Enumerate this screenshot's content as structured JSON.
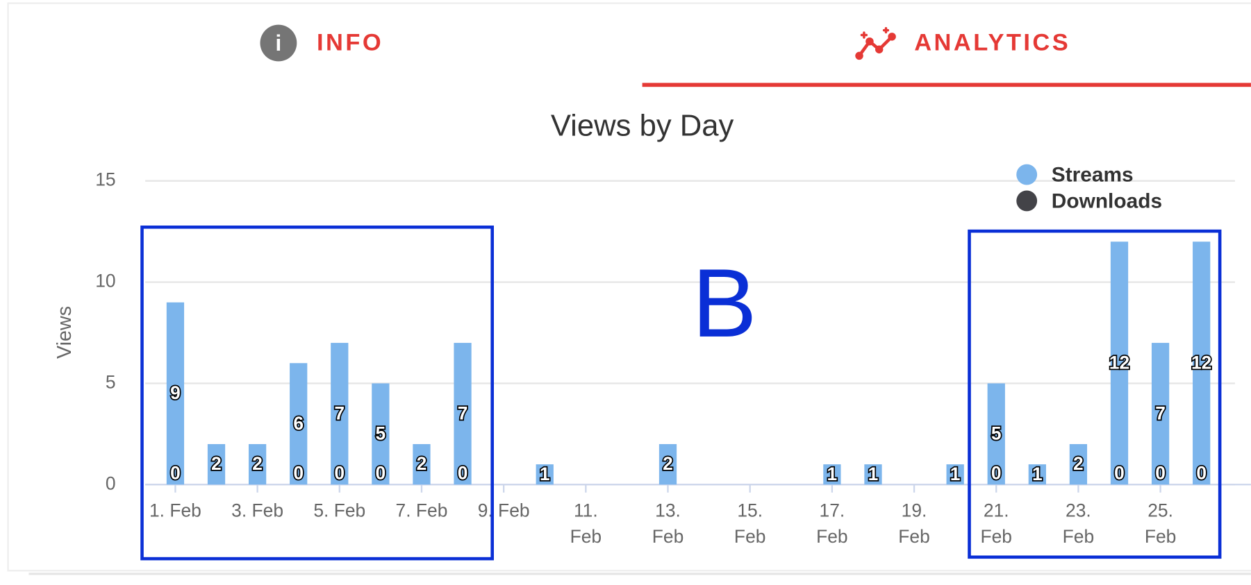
{
  "tabs": [
    {
      "label": "INFO",
      "active": false
    },
    {
      "label": "ANALYTICS",
      "active": true
    }
  ],
  "chart_data": {
    "type": "bar",
    "title": "Views by Day",
    "y_label": "Views",
    "annotations": [
      "B"
    ],
    "categories": [
      "1. Feb",
      null,
      "3. Feb",
      null,
      "5. Feb",
      null,
      "7. Feb",
      null,
      "9. Feb",
      null,
      "11. Feb",
      null,
      "13. Feb",
      null,
      "15. Feb",
      null,
      "17. Feb",
      null,
      "19. Feb",
      null,
      "21. Feb",
      null,
      "23. Feb",
      null,
      "25. Feb",
      null
    ],
    "series": [
      {
        "name": "Streams",
        "color": "#7cb5ec",
        "values": [
          9,
          2,
          2,
          6,
          7,
          5,
          2,
          7,
          null,
          1,
          null,
          null,
          2,
          null,
          null,
          null,
          1,
          1,
          null,
          1,
          5,
          1,
          2,
          12,
          7,
          12
        ]
      },
      {
        "name": "Downloads",
        "color": "#434348",
        "values": [
          0,
          null,
          null,
          0,
          0,
          0,
          null,
          0,
          null,
          null,
          null,
          null,
          null,
          null,
          null,
          null,
          null,
          null,
          null,
          null,
          0,
          null,
          null,
          0,
          0,
          0
        ]
      }
    ],
    "ylim": [
      0,
      15
    ],
    "yticks": [
      0,
      5,
      10,
      15
    ],
    "grid": true,
    "legend": "top-right"
  }
}
